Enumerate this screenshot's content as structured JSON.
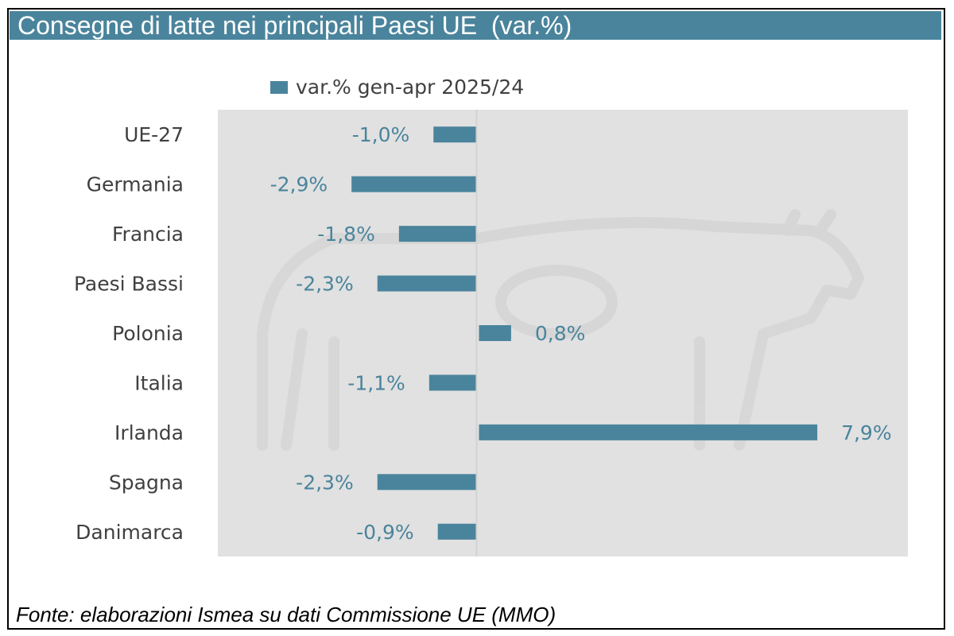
{
  "title": "Consegne di latte nei principali Paesi UE  (var.%)",
  "source": "Fonte: elaborazioni Ismea su dati Commissione UE (MMO)",
  "colors": {
    "bar": "#4a849c",
    "plot_bg": "#e1e1e1",
    "title_bg": "#4a849c"
  },
  "chart_data": {
    "type": "bar",
    "orientation": "horizontal",
    "title": "Consegne di latte nei principali Paesi UE  (var.%)",
    "categories": [
      "UE-27",
      "Germania",
      "Francia",
      "Paesi Bassi",
      "Polonia",
      "Italia",
      "Irlanda",
      "Spagna",
      "Danimarca"
    ],
    "series": [
      {
        "name": "var.% gen-apr 2025/24",
        "values": [
          -1.0,
          -2.9,
          -1.8,
          -2.3,
          0.8,
          -1.1,
          7.9,
          -2.3,
          -0.9
        ],
        "labels": [
          "-1,0%",
          "-2,9%",
          "-1,8%",
          "-2,3%",
          "0,8%",
          "-1,1%",
          "7,9%",
          "-2,3%",
          "-0,9%"
        ]
      }
    ],
    "xlim": [
      -6,
      10
    ],
    "legend_position": "top",
    "grid": false,
    "data_labels": true
  }
}
